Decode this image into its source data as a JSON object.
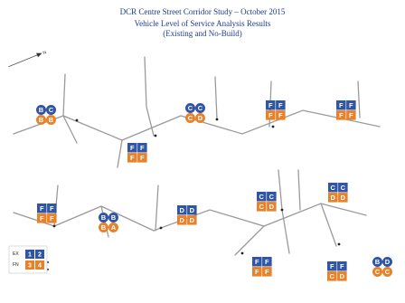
{
  "header": {
    "line1": "DCR Centre Street Corridor Study – October 2015",
    "line2": "Vehicle Level of Service Analysis Results",
    "line3": "(Existing and No-Build)"
  },
  "colors": {
    "existing": "#2f55a4",
    "nobuild": "#e8822a",
    "road": "#9a9a9a",
    "title": "#1f3a93"
  },
  "north_arrow": "N",
  "intersections": [
    {
      "id": "i1",
      "shape": "circle",
      "existing": [
        "B",
        "C"
      ],
      "nobuild": [
        "B",
        "B"
      ]
    },
    {
      "id": "i2",
      "shape": "square",
      "existing": [
        "F",
        "F"
      ],
      "nobuild": [
        "F",
        "F"
      ]
    },
    {
      "id": "i3",
      "shape": "circle",
      "existing": [
        "C",
        "C"
      ],
      "nobuild": [
        "C",
        "D"
      ]
    },
    {
      "id": "i4",
      "shape": "square",
      "existing": [
        "F",
        "F"
      ],
      "nobuild": [
        "F",
        "F"
      ]
    },
    {
      "id": "i5",
      "shape": "square",
      "existing": [
        "F",
        "F"
      ],
      "nobuild": [
        "F",
        "F"
      ]
    },
    {
      "id": "i6",
      "shape": "square",
      "existing": [
        "F",
        "F"
      ],
      "nobuild": [
        "F",
        "F"
      ]
    },
    {
      "id": "i7",
      "shape": "circle",
      "existing": [
        "B",
        "B"
      ],
      "nobuild": [
        "B",
        "A"
      ]
    },
    {
      "id": "i8",
      "shape": "square",
      "existing": [
        "D",
        "D"
      ],
      "nobuild": [
        "D",
        "D"
      ]
    },
    {
      "id": "i9",
      "shape": "square",
      "existing": [
        "C",
        "C"
      ],
      "nobuild": [
        "C",
        "D"
      ]
    },
    {
      "id": "i10",
      "shape": "square",
      "existing": [
        "C",
        "C"
      ],
      "nobuild": [
        "D",
        "D"
      ]
    },
    {
      "id": "i11",
      "shape": "square",
      "existing": [
        "F",
        "F"
      ],
      "nobuild": [
        "F",
        "F"
      ]
    },
    {
      "id": "i12",
      "shape": "square",
      "existing": [
        "F",
        "F"
      ],
      "nobuild": [
        "C",
        "D"
      ]
    },
    {
      "id": "i13",
      "shape": "circle",
      "existing": [
        "B",
        "D"
      ],
      "nobuild": [
        "C",
        "C"
      ]
    }
  ],
  "legend": {
    "rows": [
      {
        "label": "EX",
        "values": [
          "1",
          "2"
        ]
      },
      {
        "label": "FN",
        "values": [
          "3",
          "4"
        ]
      }
    ]
  }
}
